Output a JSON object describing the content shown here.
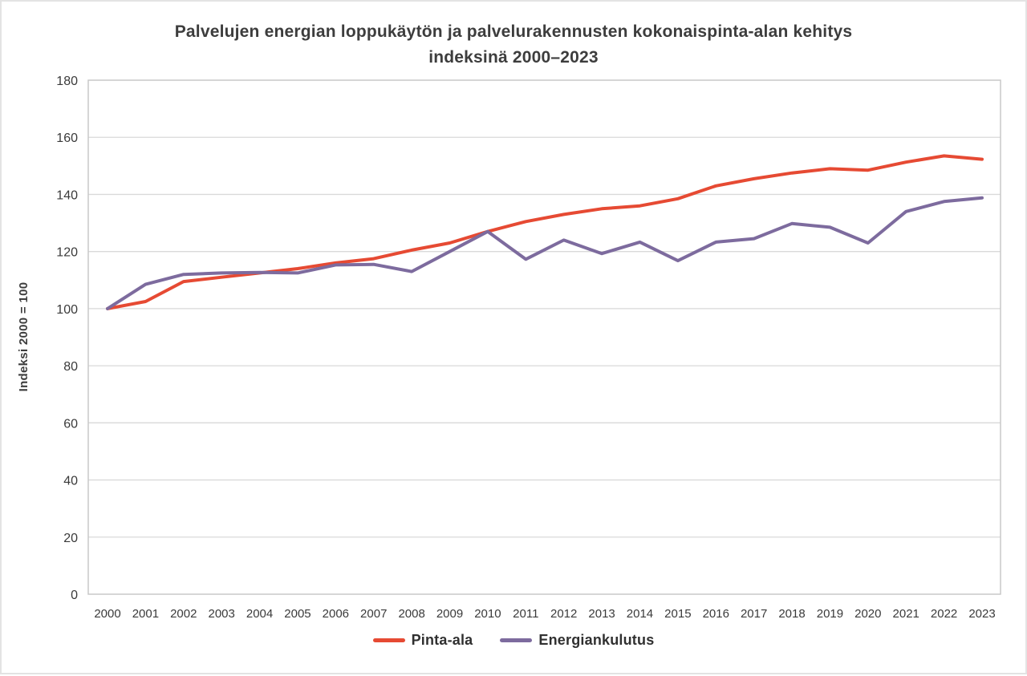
{
  "title_lines": [
    "Palvelujen energian loppukäytön ja palvelurakennusten kokonaispinta-alan kehitys",
    "indeksinä 2000–2023"
  ],
  "chart_data": {
    "type": "line",
    "title": "Palvelujen energian loppukäytön ja palvelurakennusten kokonaispinta-alan kehitys indeksinä 2000–2023",
    "ylabel": "Indeksi 2000 = 100",
    "xlabel": "",
    "ylim": [
      0,
      180
    ],
    "y_tick_step": 20,
    "grid": "horizontal",
    "legend_position": "bottom",
    "categories": [
      2000,
      2001,
      2002,
      2003,
      2004,
      2005,
      2006,
      2007,
      2008,
      2009,
      2010,
      2011,
      2012,
      2013,
      2014,
      2015,
      2016,
      2017,
      2018,
      2019,
      2020,
      2021,
      2022,
      2023
    ],
    "series": [
      {
        "name": "Pinta-ala",
        "color": "#e64a33",
        "values": [
          100,
          102.5,
          109.5,
          111,
          112.5,
          114,
          116,
          117.5,
          120.5,
          123,
          127,
          130.5,
          133,
          135,
          136,
          138.5,
          143,
          145.5,
          147.5,
          149,
          148.5,
          151.3,
          153.5,
          152.3
        ]
      },
      {
        "name": "Energiankulutus",
        "color": "#7d6b9e",
        "values": [
          100,
          108.5,
          112,
          112.5,
          112.7,
          112.5,
          115.3,
          115.5,
          113,
          120,
          127,
          117.3,
          124,
          119.3,
          123.3,
          116.8,
          123.3,
          124.5,
          129.8,
          128.5,
          123,
          134,
          137.5,
          138.8
        ]
      }
    ]
  },
  "colors": {
    "grid": "#d9d9d9",
    "plot_border": "#c9c9c9",
    "text": "#3a3a3a"
  }
}
